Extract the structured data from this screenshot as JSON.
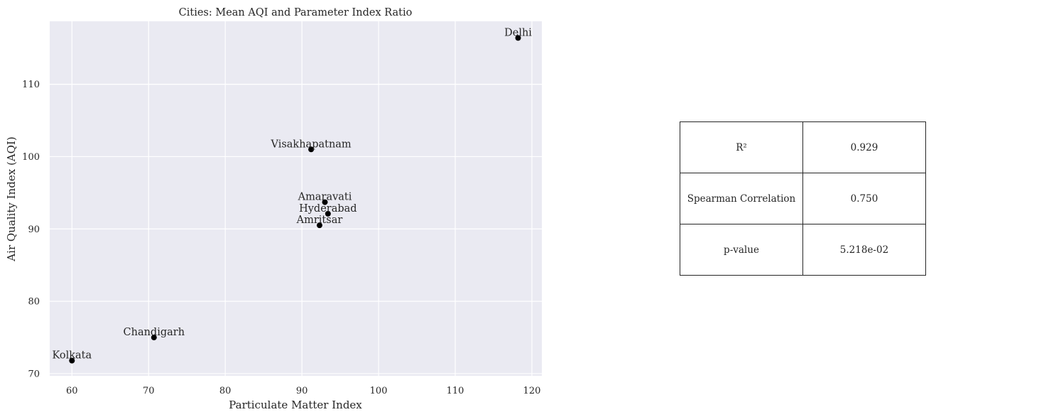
{
  "chart_data": {
    "type": "scatter",
    "title": "Cities: Mean AQI and Parameter Index Ratio",
    "xlabel": "Particulate Matter Index",
    "ylabel": "Air Quality Index (AQI)",
    "xlim": [
      57.1,
      121.3
    ],
    "ylim": [
      69.7,
      118.7
    ],
    "xticks": [
      60,
      70,
      80,
      90,
      100,
      110,
      120
    ],
    "yticks": [
      70,
      80,
      90,
      100,
      110
    ],
    "grid": true,
    "points": [
      {
        "label": "Delhi",
        "x": 118.2,
        "y": 116.4
      },
      {
        "label": "Visakhapatnam",
        "x": 91.2,
        "y": 101.0
      },
      {
        "label": "Amaravati",
        "x": 93.0,
        "y": 93.7
      },
      {
        "label": "Hyderabad",
        "x": 93.4,
        "y": 92.1
      },
      {
        "label": "Amritsar",
        "x": 92.3,
        "y": 90.5
      },
      {
        "label": "Chandigarh",
        "x": 70.7,
        "y": 75.0
      },
      {
        "label": "Kolkata",
        "x": 60.0,
        "y": 71.8
      }
    ]
  },
  "stats_table": {
    "rows": [
      {
        "label": "R²",
        "value": "0.929"
      },
      {
        "label": "Spearman Correlation",
        "value": "0.750"
      },
      {
        "label": "p-value",
        "value": "5.218e-02"
      }
    ]
  }
}
